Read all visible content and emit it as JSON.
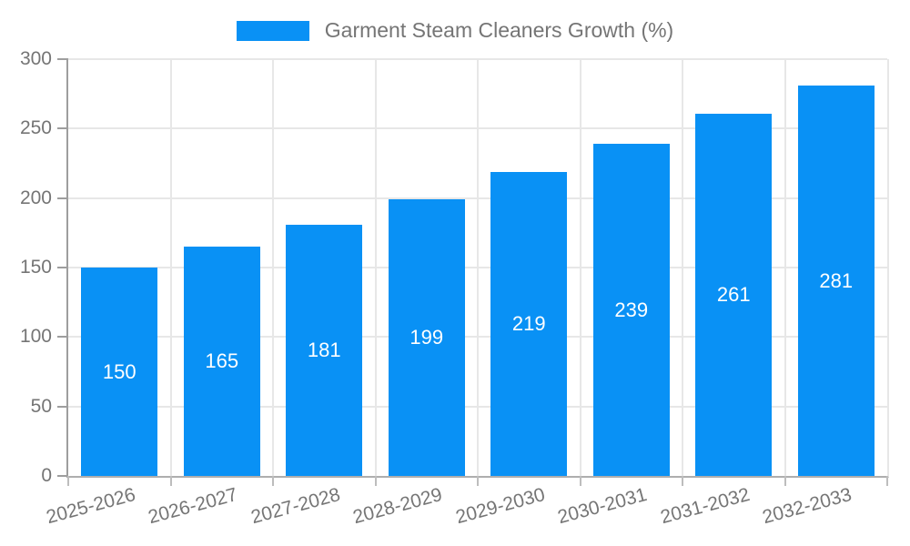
{
  "chart_data": {
    "type": "bar",
    "title": "Garment Steam Cleaners Growth (%)",
    "categories": [
      "2025-2026",
      "2026-2027",
      "2027-2028",
      "2028-2029",
      "2029-2030",
      "2030-2031",
      "2031-2032",
      "2032-2033"
    ],
    "values": [
      150,
      165,
      181,
      199,
      219,
      239,
      261,
      281
    ],
    "xlabel": "",
    "ylabel": "",
    "ylim": [
      0,
      300
    ],
    "yticks": [
      0,
      50,
      100,
      150,
      200,
      250,
      300
    ],
    "grid": true,
    "legend_position": "top-center",
    "bar_value_labels_position": "center",
    "colors": {
      "bar": "#0991f5",
      "bar_label": "#ffffff",
      "axis": "#9e9e9e",
      "grid": "#e7e7e7",
      "tick_text": "#757575",
      "legend_text": "#757575",
      "background": "#ffffff"
    }
  }
}
